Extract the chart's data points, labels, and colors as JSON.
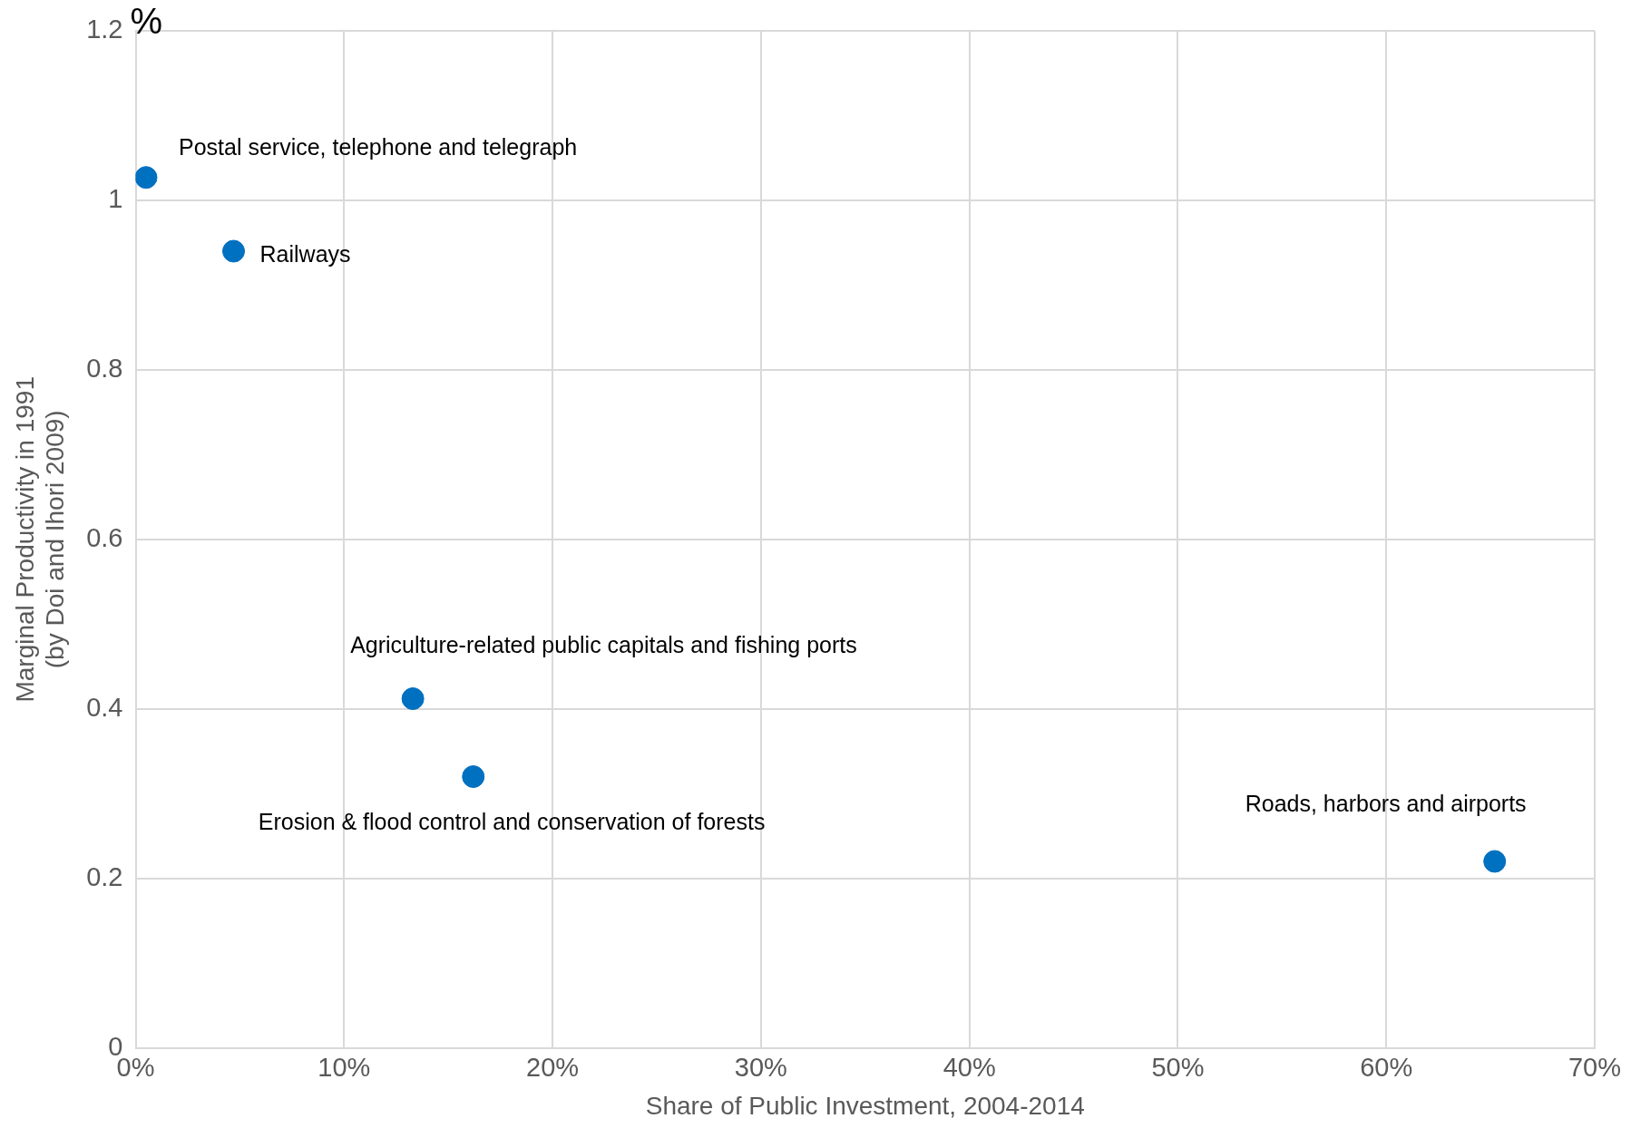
{
  "chart_data": {
    "type": "scatter",
    "xlabel": "Share of Public Investment, 2004-2014",
    "ylabel": "Marginal Productivity in 1991\n(by Doi and Ihori 2009)",
    "x": [
      0.5,
      4.7,
      13.3,
      16.2,
      65.2
    ],
    "series": [
      {
        "color": "#0070c0",
        "values": [
          1.027,
          0.94,
          0.412,
          0.32,
          0.22
        ]
      }
    ],
    "xlim": [
      0,
      70
    ],
    "xticks": [
      {
        "value": 0,
        "label": "0%"
      },
      {
        "value": 10,
        "label": "10%"
      },
      {
        "value": 20,
        "label": "20%"
      },
      {
        "value": 30,
        "label": "30%"
      },
      {
        "value": 40,
        "label": "40%"
      },
      {
        "value": 50,
        "label": "50%"
      },
      {
        "value": 60,
        "label": "60%"
      },
      {
        "value": 70,
        "label": "70%"
      }
    ],
    "ylim": [
      0,
      1.2
    ],
    "yticks": [
      0,
      0.2,
      0.4,
      0.6,
      0.8,
      1,
      1.2
    ],
    "grid": true,
    "legend": false,
    "marker": "circle",
    "annotations": [
      {
        "text": "Postal service, telephone and telegraph",
        "x": 0.5,
        "y": 1.027
      },
      {
        "text": "Railways",
        "x": 4.7,
        "y": 0.94
      },
      {
        "text": "Agriculture-related public capitals and fishing ports",
        "x": 13.3,
        "y": 0.412
      },
      {
        "text": "Erosion & flood control and conservation of forests",
        "x": 16.2,
        "y": 0.32
      },
      {
        "text": "Roads, harbors and airports",
        "x": 65.2,
        "y": 0.22
      },
      "%"
    ]
  }
}
